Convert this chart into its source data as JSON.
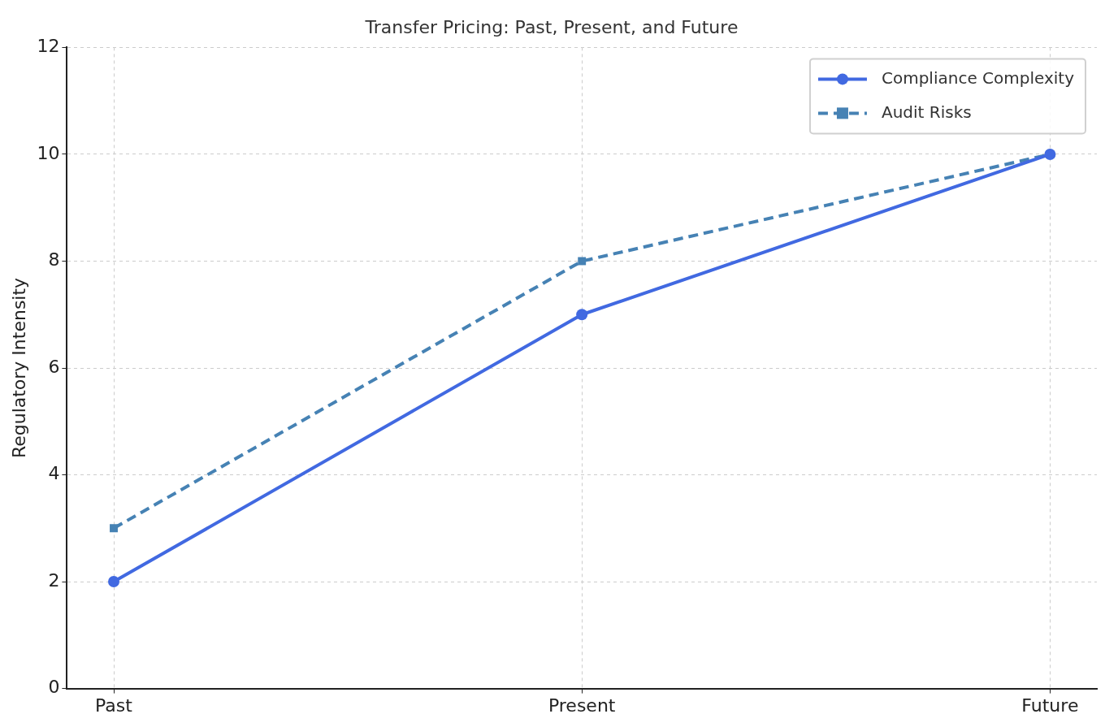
{
  "chart_data": {
    "type": "line",
    "title": "Transfer Pricing: Past, Present, and Future",
    "ylabel": "Regulatory Intensity",
    "categories": [
      "Past",
      "Present",
      "Future"
    ],
    "series": [
      {
        "name": "Compliance Complexity",
        "color": "#4169e1",
        "values": [
          2,
          7,
          10
        ],
        "marker": "circle",
        "line_style": "solid"
      },
      {
        "name": "Audit Risks",
        "color": "#4682b4",
        "values": [
          3,
          8,
          10
        ],
        "marker": "square",
        "line_style": "dashed"
      }
    ],
    "ylim": [
      0,
      12
    ],
    "yticks": [
      0,
      2,
      4,
      6,
      8,
      10,
      12
    ],
    "grid": true,
    "legend": "top right"
  }
}
